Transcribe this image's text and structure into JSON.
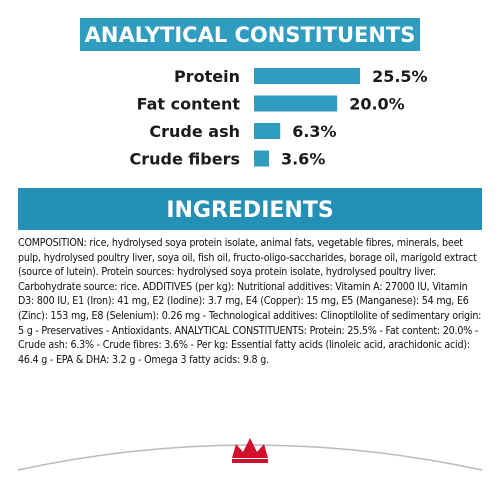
{
  "chart_data": {
    "type": "bar",
    "title": "ANALYTICAL CONSTITUENTS",
    "categories": [
      "Protein",
      "Fat content",
      "Crude ash",
      "Crude fibers"
    ],
    "values": [
      25.5,
      20.0,
      6.3,
      3.6
    ],
    "value_labels": [
      "25.5%",
      "20.0%",
      "6.3%",
      "3.6%"
    ],
    "color": "#2f9cc0"
  },
  "ingredients": {
    "title": "INGREDIENTS",
    "text": "COMPOSITION: rice, hydrolysed soya protein isolate, animal fats, vegetable fibres, minerals, beet pulp, hydrolysed poultry liver, soya oil, fish oil, fructo-oligo-saccharides, borage oil, marigold extract (source of lutein). Protein sources: hydrolysed soya protein isolate, hydrolysed poultry liver. Carbohydrate source: rice. ADDITIVES (per kg): Nutritional additives: Vitamin A: 27000 IU, Vitamin D3: 800 IU, E1 (Iron): 41 mg, E2 (Iodine): 3.7 mg, E4 (Copper): 15 mg, E5 (Manganese): 54 mg, E6 (Zinc): 153 mg, E8 (Selenium): 0.26 mg - Technological additives: Clinoptilolite of sedimentary origin: 5 g - Preservatives - Antioxidants. ANALYTICAL CONSTITUENTS: Protein: 25.5% - Fat content: 20.0% - Crude ash: 6.3% - Crude fibres: 3.6% - Per kg: Essential fatty acids (linoleic acid, arachidonic acid): 46.4 g - EPA & DHA: 3.2 g - Omega 3 fatty acids: 9.8 g."
  }
}
